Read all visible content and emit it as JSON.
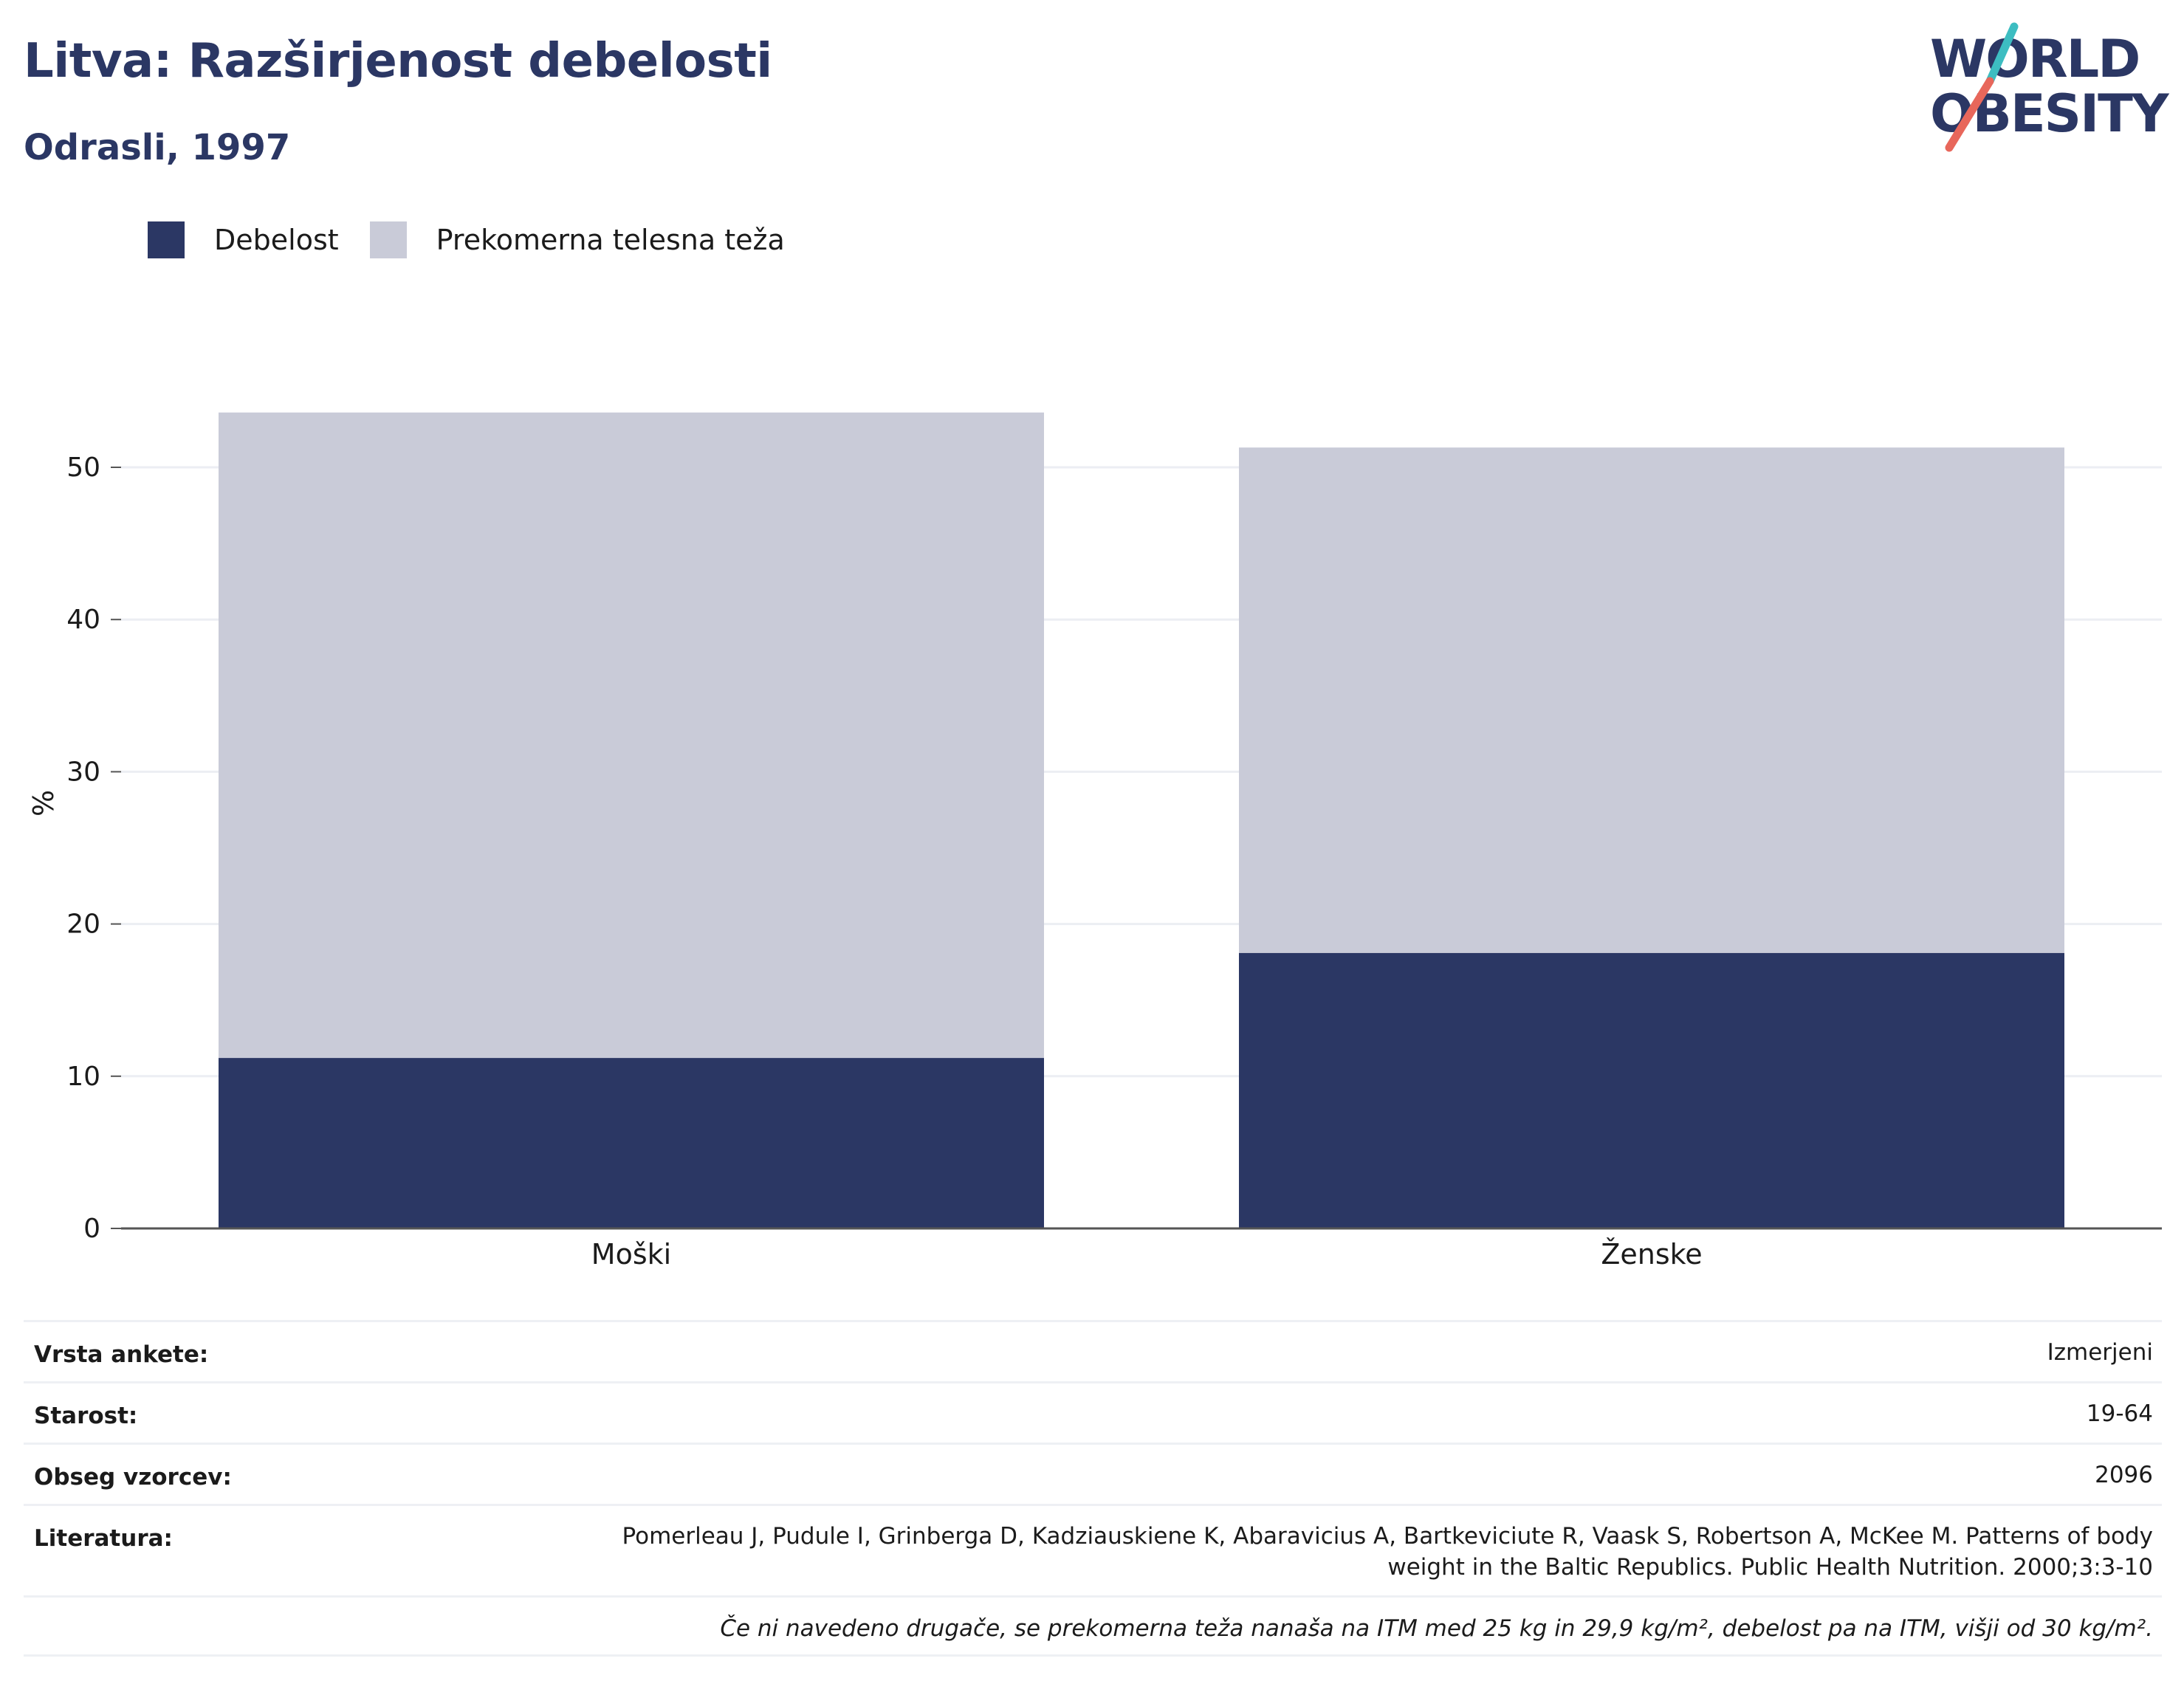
{
  "header": {
    "title": "Litva: Razširjenost debelosti",
    "subtitle": "Odrasli, 1997"
  },
  "logo": {
    "line1": "WORLD",
    "line2": "OBESITY",
    "colors": {
      "text": "#2b3764",
      "slash_top": "#3dbdc1",
      "slash_bottom": "#e8675b"
    }
  },
  "colors": {
    "obesity": "#2b3764",
    "overweight": "#c9cbd8",
    "grid": "#eceef3",
    "axis": "#555555"
  },
  "chart_data": {
    "type": "bar",
    "stacked": true,
    "categories": [
      "Moški",
      "Ženske"
    ],
    "series": [
      {
        "name": "Debelost",
        "values": [
          11.2,
          18.1
        ]
      },
      {
        "name": "Prekomerna telesna teža",
        "values": [
          42.4,
          33.2
        ]
      }
    ],
    "title": "",
    "xlabel": "",
    "ylabel": "%",
    "ylim": [
      0,
      55
    ],
    "yticks": [
      0,
      10,
      20,
      30,
      40,
      50
    ],
    "grid": true,
    "legend": "top-left"
  },
  "info": {
    "rows": [
      {
        "key": "Vrsta ankete:",
        "value": "Izmerjeni"
      },
      {
        "key": "Starost:",
        "value": "19-64"
      },
      {
        "key": "Obseg vzorcev:",
        "value": "2096"
      },
      {
        "key": "Literatura:",
        "value_line1": "Pomerleau J, Pudule I, Grinberga D, Kadziauskiene K, Abaravicius A, Bartkeviciute R, Vaask S, Robertson A, McKee M. Patterns of body",
        "value_line2": "weight in the Baltic Republics. Public Health Nutrition. 2000;3:3-10"
      }
    ],
    "note": "Če ni navedeno drugače, se prekomerna teža nanaša na ITM med 25 kg in 29,9 kg/m², debelost pa na ITM, višji od 30 kg/m²."
  }
}
